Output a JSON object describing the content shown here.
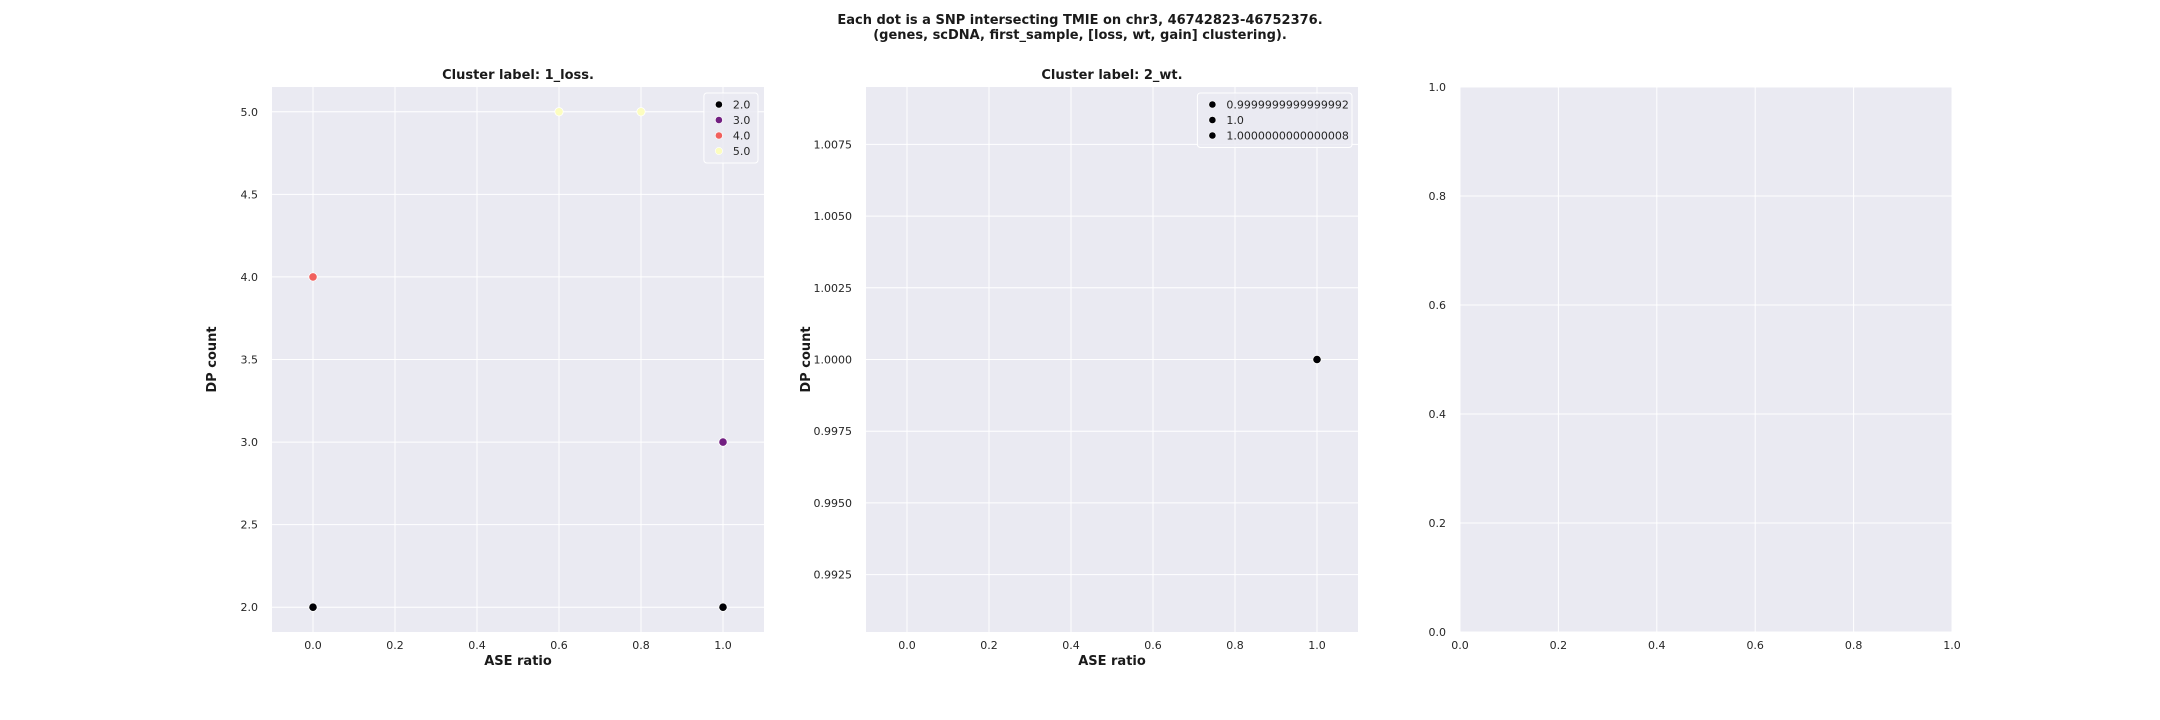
{
  "figure": {
    "suptitle_lines": [
      "Each dot is a SNP intersecting TMIE on chr3, 46742823-46752376.",
      "(genes, scDNA, first_sample, [loss, wt, gain] clustering)."
    ]
  },
  "colors": {
    "axes_bg": "#eaeaf2",
    "grid": "#ffffff"
  },
  "chart_data": [
    {
      "type": "scatter",
      "title": "Cluster label: 1_loss.",
      "xlabel": "ASE ratio",
      "ylabel": "DP count",
      "xlim": [
        -0.1,
        1.1
      ],
      "ylim": [
        1.85,
        5.15
      ],
      "xticks": [
        0.0,
        0.2,
        0.4,
        0.6,
        0.8,
        1.0
      ],
      "xtick_labels": [
        "0.0",
        "0.2",
        "0.4",
        "0.6",
        "0.8",
        "1.0"
      ],
      "yticks": [
        2.0,
        2.5,
        3.0,
        3.5,
        4.0,
        4.5,
        5.0
      ],
      "ytick_labels": [
        "2.0",
        "2.5",
        "3.0",
        "3.5",
        "4.0",
        "4.5",
        "5.0"
      ],
      "grid": true,
      "legend_position": "top-right",
      "legend": [
        {
          "label": "2.0",
          "color": "#000004"
        },
        {
          "label": "3.0",
          "color": "#721f81"
        },
        {
          "label": "4.0",
          "color": "#f1605d"
        },
        {
          "label": "5.0",
          "color": "#fcfdbf"
        }
      ],
      "points": [
        {
          "x": 0.0,
          "y": 2.0,
          "color": "#000004"
        },
        {
          "x": 1.0,
          "y": 2.0,
          "color": "#000004"
        },
        {
          "x": 1.0,
          "y": 3.0,
          "color": "#721f81"
        },
        {
          "x": 0.0,
          "y": 4.0,
          "color": "#f1605d"
        },
        {
          "x": 0.6,
          "y": 5.0,
          "color": "#fcfdbf"
        },
        {
          "x": 0.8,
          "y": 5.0,
          "color": "#fcfdbf"
        }
      ]
    },
    {
      "type": "scatter",
      "title": "Cluster label: 2_wt.",
      "xlabel": "ASE ratio",
      "ylabel": "DP count",
      "xlim": [
        -0.1,
        1.1
      ],
      "ylim": [
        0.9905,
        1.0095
      ],
      "xticks": [
        0.0,
        0.2,
        0.4,
        0.6,
        0.8,
        1.0
      ],
      "xtick_labels": [
        "0.0",
        "0.2",
        "0.4",
        "0.6",
        "0.8",
        "1.0"
      ],
      "yticks": [
        0.9925,
        0.995,
        0.9975,
        1.0,
        1.0025,
        1.005,
        1.0075
      ],
      "ytick_labels": [
        "0.9925",
        "0.9950",
        "0.9975",
        "1.0000",
        "1.0025",
        "1.0050",
        "1.0075"
      ],
      "grid": true,
      "legend_position": "top-right",
      "legend": [
        {
          "label": "0.9999999999999992",
          "color": "#000004"
        },
        {
          "label": "1.0",
          "color": "#000004"
        },
        {
          "label": "1.0000000000000008",
          "color": "#000004"
        }
      ],
      "points": [
        {
          "x": 1.0,
          "y": 1.0,
          "color": "#000004"
        }
      ]
    },
    {
      "type": "scatter",
      "title": "",
      "xlabel": "",
      "ylabel": "",
      "xlim": [
        0.0,
        1.0
      ],
      "ylim": [
        0.0,
        1.0
      ],
      "xticks": [
        0.0,
        0.2,
        0.4,
        0.6,
        0.8,
        1.0
      ],
      "xtick_labels": [
        "0.0",
        "0.2",
        "0.4",
        "0.6",
        "0.8",
        "1.0"
      ],
      "yticks": [
        0.0,
        0.2,
        0.4,
        0.6,
        0.8,
        1.0
      ],
      "ytick_labels": [
        "0.0",
        "0.2",
        "0.4",
        "0.6",
        "0.8",
        "1.0"
      ],
      "grid": true,
      "legend": [],
      "points": []
    }
  ]
}
